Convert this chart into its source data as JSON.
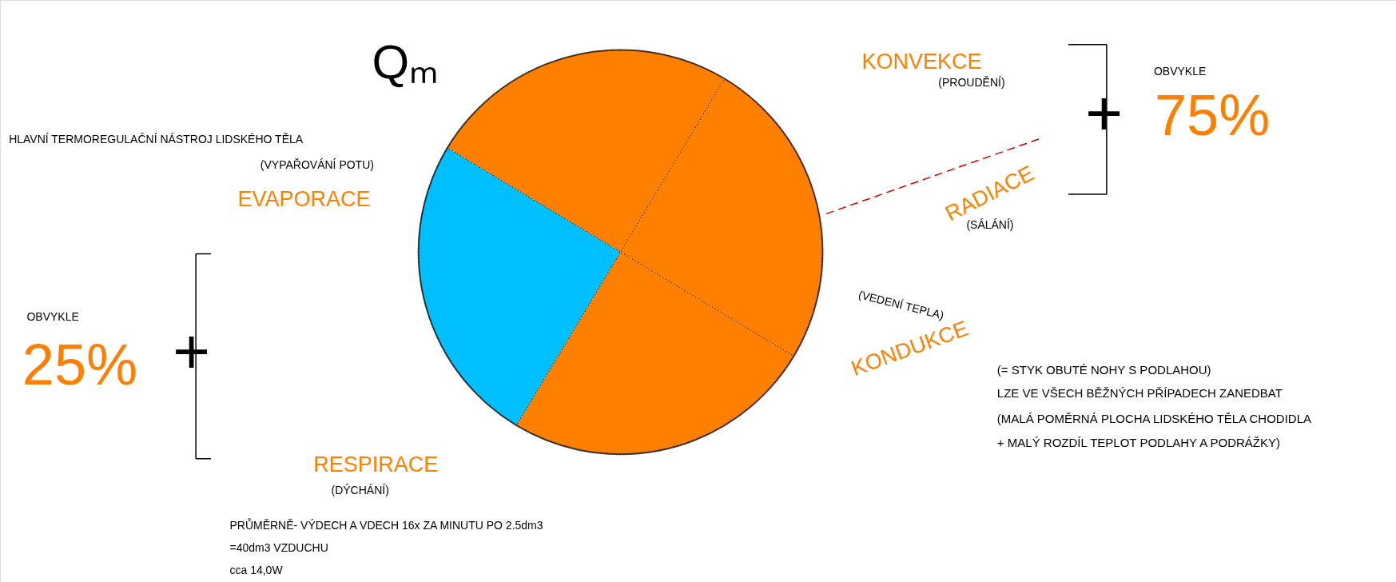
{
  "chart_data": {
    "type": "pie",
    "title": "Qₘ",
    "categories": [
      null,
      null,
      null,
      null
    ],
    "values": [
      25,
      25,
      25,
      25
    ],
    "colors": [
      "#00bfff",
      "#ff8000",
      "#ff8000",
      "#ff8000"
    ],
    "annotations": [
      "HLAVNÍ TERMOREGULAČNÍ NÁSTROJ LIDSKÉHO TĚLA",
      "(VYPAŘOVÁNÍ POTU)",
      "EVAPORACE",
      "OBVYKLE",
      "25%",
      "+",
      "RESPIRACE",
      "(DÝCHÁNÍ)",
      "PRŮMĚRNĚ- VÝDECH A VDECH 16x ZA MINUTU PO 2.5dm3",
      "=40dm3 VZDUCHU",
      "cca 14,0W",
      "KONVEKCE",
      "(PROUDĚNÍ)",
      "+",
      "OBVYKLE",
      "75%",
      "RADIACE",
      "(SÁLÁNÍ)",
      "(VEDENÍ TEPLA)",
      "KONDUKCE",
      "(= STYK OBUTÉ NOHY S PODLAHOU)",
      "LZE VE VŠECH BĚŽNÝCH PŘÍPADECH ZANEDBAT",
      "(MALÁ POMĚRNÁ PLOCHA LIDSKÉHO TĚLA CHODIDLA",
      "+ MALÝ ROZDÍL TEPLOT PODLAHY A PODRÁŽKY)"
    ]
  }
}
